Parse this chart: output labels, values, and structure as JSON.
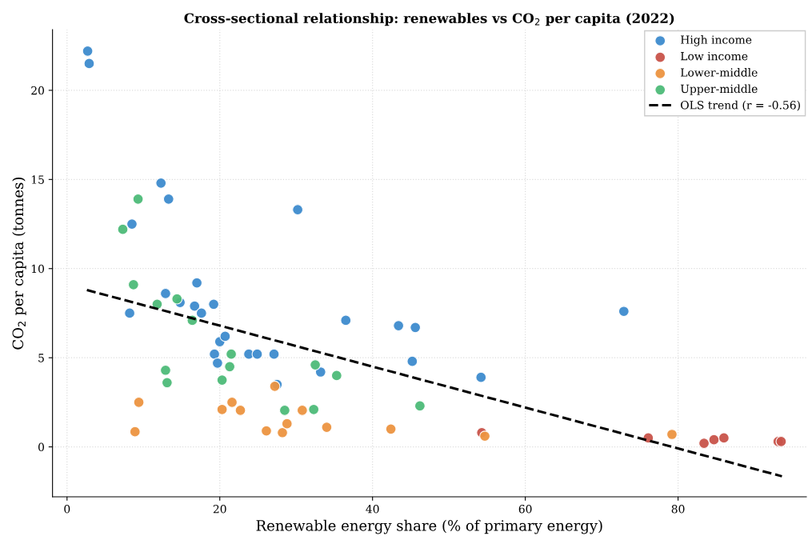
{
  "chart_data": {
    "type": "scatter",
    "title": "Cross-sectional relationship: renewables vs CO$_{2}$ per capita (2022)",
    "xlabel": "Renewable energy share (% of primary energy)",
    "ylabel": "CO$_{2}$ per capita (tonnes)",
    "xlim": [
      -1.9,
      96.8
    ],
    "ylim": [
      -2.8,
      23.4
    ],
    "xticks": [
      0,
      20,
      40,
      60,
      80
    ],
    "yticks": [
      0,
      5,
      10,
      15,
      20
    ],
    "grid": true,
    "legend": "top right",
    "marker": "circle",
    "series": [
      {
        "name": "High income",
        "color": "#3d8bcd",
        "x": [
          2.7,
          2.9,
          12.3,
          13.3,
          8.5,
          30.2,
          8.2,
          12.9,
          14.8,
          17.0,
          16.7,
          17.6,
          19.2,
          20.0,
          20.7,
          19.3,
          19.7,
          23.8,
          24.9,
          27.1,
          27.5,
          36.5,
          33.2,
          43.4,
          45.6,
          45.2,
          54.2,
          72.9
        ],
        "values": [
          22.2,
          21.5,
          14.8,
          13.9,
          12.5,
          13.3,
          7.5,
          8.6,
          8.1,
          9.2,
          7.9,
          7.5,
          8.0,
          5.9,
          6.2,
          5.2,
          4.7,
          5.2,
          5.2,
          5.2,
          3.5,
          7.1,
          4.2,
          6.8,
          6.7,
          4.8,
          3.9,
          7.6
        ]
      },
      {
        "name": "Low income",
        "color": "#c8534a",
        "x": [
          76.1,
          83.4,
          84.7,
          86.0,
          93.1,
          93.5,
          54.3
        ],
        "values": [
          0.5,
          0.2,
          0.4,
          0.5,
          0.3,
          0.3,
          0.8
        ]
      },
      {
        "name": "Lower-middle",
        "color": "#ec9440",
        "x": [
          9.4,
          8.9,
          20.3,
          21.6,
          22.7,
          27.2,
          26.1,
          28.2,
          28.8,
          30.8,
          34.0,
          42.4,
          54.7,
          79.2
        ],
        "values": [
          2.5,
          0.85,
          2.1,
          2.5,
          2.05,
          3.4,
          0.9,
          0.8,
          1.3,
          2.05,
          1.1,
          1.0,
          0.6,
          0.7
        ]
      },
      {
        "name": "Upper-middle",
        "color": "#4dba78",
        "x": [
          9.3,
          7.3,
          8.7,
          11.8,
          14.4,
          16.4,
          12.9,
          13.1,
          21.5,
          21.3,
          20.3,
          28.5,
          32.3,
          32.5,
          35.3,
          46.2
        ],
        "values": [
          13.9,
          12.2,
          9.1,
          8.0,
          8.3,
          7.1,
          4.3,
          3.6,
          5.2,
          4.5,
          3.75,
          2.05,
          2.1,
          4.6,
          4.0,
          2.3
        ]
      },
      {
        "name": "OLS trend (r = -0.56)",
        "type": "line",
        "color": "#000000",
        "line_style": "dashed",
        "marker": "none",
        "x": [
          2.6,
          93.6
        ],
        "values": [
          8.8,
          -1.65
        ]
      }
    ]
  }
}
